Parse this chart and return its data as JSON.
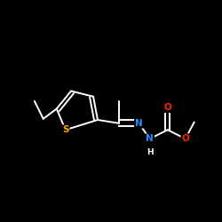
{
  "background_color": "#000000",
  "bond_color": "#ffffff",
  "atom_colors": {
    "N": "#1e90ff",
    "O": "#ff2200",
    "S": "#ffa500",
    "C": "#ffffff",
    "H": "#ffffff"
  },
  "figsize": [
    2.5,
    2.5
  ],
  "dpi": 100,
  "xlim": [
    0.0,
    1.0
  ],
  "ylim": [
    0.0,
    1.0
  ],
  "line_width": 1.4,
  "font_size": 7.5
}
